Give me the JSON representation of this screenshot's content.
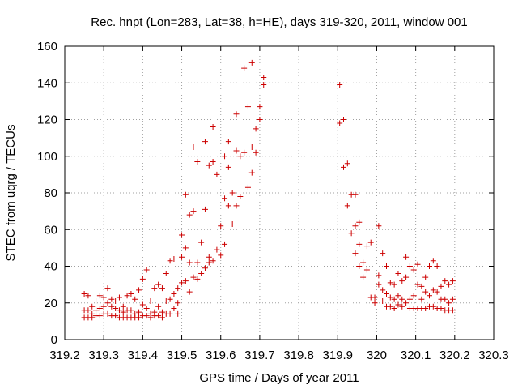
{
  "chart_data": {
    "type": "scatter",
    "title": "Rec. hnpt (Lon=283, Lat=38, h=HE), days 319-320, 2011, window 001",
    "xlabel": "GPS time / Days of year 2011",
    "ylabel": "STEC from uqrg / TECUs",
    "xlim": [
      319.2,
      320.3
    ],
    "ylim": [
      0,
      160
    ],
    "x_ticks": [
      "319.2",
      "319.3",
      "319.4",
      "319.5",
      "319.6",
      "319.7",
      "319.8",
      "319.9",
      "320",
      "320.1",
      "320.2",
      "320.3"
    ],
    "y_ticks": [
      "0",
      "20",
      "40",
      "60",
      "80",
      "100",
      "120",
      "140",
      "160"
    ],
    "grid": true,
    "legend": "none",
    "marker": "+",
    "color": "#cc0000",
    "series": [
      {
        "points": [
          [
            319.25,
            25
          ],
          [
            319.25,
            16
          ],
          [
            319.25,
            12
          ],
          [
            319.26,
            24
          ],
          [
            319.26,
            16
          ],
          [
            319.26,
            12
          ],
          [
            319.27,
            18
          ],
          [
            319.27,
            14
          ],
          [
            319.27,
            12
          ],
          [
            319.28,
            21
          ],
          [
            319.28,
            16
          ],
          [
            319.28,
            13
          ],
          [
            319.29,
            24
          ],
          [
            319.29,
            17
          ],
          [
            319.29,
            13
          ],
          [
            319.3,
            23
          ],
          [
            319.3,
            18
          ],
          [
            319.3,
            14
          ],
          [
            319.31,
            28
          ],
          [
            319.31,
            20
          ],
          [
            319.31,
            14
          ],
          [
            319.32,
            22
          ],
          [
            319.32,
            18
          ],
          [
            319.32,
            13
          ],
          [
            319.33,
            21
          ],
          [
            319.33,
            17
          ],
          [
            319.33,
            13
          ],
          [
            319.34,
            23
          ],
          [
            319.34,
            16
          ],
          [
            319.34,
            12
          ],
          [
            319.35,
            18
          ],
          [
            319.35,
            15
          ],
          [
            319.35,
            12
          ],
          [
            319.36,
            24
          ],
          [
            319.36,
            16
          ],
          [
            319.36,
            12
          ],
          [
            319.37,
            25
          ],
          [
            319.37,
            16
          ],
          [
            319.37,
            12
          ],
          [
            319.38,
            22
          ],
          [
            319.38,
            14
          ],
          [
            319.38,
            12
          ],
          [
            319.39,
            27
          ],
          [
            319.39,
            15
          ],
          [
            319.39,
            12
          ],
          [
            319.4,
            33
          ],
          [
            319.4,
            19
          ],
          [
            319.4,
            13
          ],
          [
            319.41,
            38
          ],
          [
            319.41,
            17
          ],
          [
            319.41,
            13
          ],
          [
            319.42,
            21
          ],
          [
            319.42,
            14
          ],
          [
            319.42,
            12
          ],
          [
            319.43,
            28
          ],
          [
            319.43,
            15
          ],
          [
            319.43,
            13
          ],
          [
            319.44,
            30
          ],
          [
            319.44,
            18
          ],
          [
            319.44,
            13
          ],
          [
            319.45,
            28
          ],
          [
            319.45,
            15
          ],
          [
            319.45,
            12
          ],
          [
            319.46,
            36
          ],
          [
            319.46,
            21
          ],
          [
            319.46,
            14
          ],
          [
            319.47,
            43
          ],
          [
            319.47,
            22
          ],
          [
            319.47,
            14
          ],
          [
            319.48,
            44
          ],
          [
            319.48,
            25
          ],
          [
            319.48,
            17
          ],
          [
            319.49,
            28
          ],
          [
            319.49,
            20
          ],
          [
            319.49,
            14
          ],
          [
            319.5,
            57
          ],
          [
            319.5,
            45
          ],
          [
            319.5,
            31
          ],
          [
            319.51,
            79
          ],
          [
            319.51,
            50
          ],
          [
            319.51,
            32
          ],
          [
            319.52,
            68
          ],
          [
            319.52,
            42
          ],
          [
            319.52,
            26
          ],
          [
            319.53,
            105
          ],
          [
            319.53,
            70
          ],
          [
            319.53,
            34
          ],
          [
            319.54,
            97
          ],
          [
            319.54,
            42
          ],
          [
            319.54,
            33
          ],
          [
            319.55,
            53
          ],
          [
            319.55,
            36
          ],
          [
            319.56,
            108
          ],
          [
            319.56,
            71
          ],
          [
            319.56,
            39
          ],
          [
            319.57,
            95
          ],
          [
            319.57,
            45
          ],
          [
            319.57,
            42
          ],
          [
            319.58,
            116
          ],
          [
            319.58,
            97
          ],
          [
            319.58,
            43
          ],
          [
            319.59,
            90
          ],
          [
            319.59,
            49
          ],
          [
            319.6,
            62
          ],
          [
            319.6,
            46
          ],
          [
            319.61,
            100
          ],
          [
            319.61,
            77
          ],
          [
            319.61,
            52
          ],
          [
            319.62,
            108
          ],
          [
            319.62,
            94
          ],
          [
            319.62,
            73
          ],
          [
            319.63,
            80
          ],
          [
            319.63,
            63
          ],
          [
            319.64,
            123
          ],
          [
            319.64,
            103
          ],
          [
            319.64,
            73
          ],
          [
            319.65,
            100
          ],
          [
            319.65,
            78
          ],
          [
            319.66,
            148
          ],
          [
            319.66,
            102
          ],
          [
            319.67,
            127
          ],
          [
            319.67,
            83
          ],
          [
            319.68,
            151
          ],
          [
            319.68,
            105
          ],
          [
            319.68,
            91
          ],
          [
            319.69,
            115
          ],
          [
            319.69,
            102
          ],
          [
            319.7,
            127
          ],
          [
            319.7,
            120
          ],
          [
            319.71,
            143
          ],
          [
            319.71,
            139
          ],
          [
            319.905,
            139
          ],
          [
            319.905,
            118
          ],
          [
            319.915,
            120
          ],
          [
            319.915,
            94
          ],
          [
            319.925,
            96
          ],
          [
            319.925,
            73
          ],
          [
            319.935,
            79
          ],
          [
            319.935,
            58
          ],
          [
            319.945,
            79
          ],
          [
            319.945,
            62
          ],
          [
            319.945,
            47
          ],
          [
            319.955,
            64
          ],
          [
            319.955,
            52
          ],
          [
            319.955,
            40
          ],
          [
            319.965,
            42
          ],
          [
            319.965,
            34
          ],
          [
            319.975,
            51
          ],
          [
            319.975,
            38
          ],
          [
            319.985,
            53
          ],
          [
            319.985,
            23
          ],
          [
            319.995,
            23
          ],
          [
            319.995,
            20
          ],
          [
            320.005,
            62
          ],
          [
            320.005,
            35
          ],
          [
            320.005,
            30
          ],
          [
            320.015,
            47
          ],
          [
            320.015,
            27
          ],
          [
            320.015,
            21
          ],
          [
            320.025,
            40
          ],
          [
            320.025,
            25
          ],
          [
            320.025,
            18
          ],
          [
            320.035,
            31
          ],
          [
            320.035,
            23
          ],
          [
            320.035,
            18
          ],
          [
            320.045,
            30
          ],
          [
            320.045,
            22
          ],
          [
            320.045,
            17
          ],
          [
            320.055,
            36
          ],
          [
            320.055,
            24
          ],
          [
            320.055,
            19
          ],
          [
            320.065,
            32
          ],
          [
            320.065,
            22
          ],
          [
            320.065,
            18
          ],
          [
            320.075,
            45
          ],
          [
            320.075,
            34
          ],
          [
            320.075,
            20
          ],
          [
            320.085,
            40
          ],
          [
            320.085,
            22
          ],
          [
            320.085,
            17
          ],
          [
            320.095,
            38
          ],
          [
            320.095,
            24
          ],
          [
            320.095,
            17
          ],
          [
            320.105,
            41
          ],
          [
            320.105,
            30
          ],
          [
            320.105,
            17
          ],
          [
            320.115,
            29
          ],
          [
            320.115,
            22
          ],
          [
            320.115,
            17
          ],
          [
            320.125,
            34
          ],
          [
            320.125,
            26
          ],
          [
            320.125,
            17
          ],
          [
            320.135,
            40
          ],
          [
            320.135,
            24
          ],
          [
            320.135,
            18
          ],
          [
            320.145,
            43
          ],
          [
            320.145,
            27
          ],
          [
            320.145,
            18
          ],
          [
            320.155,
            40
          ],
          [
            320.155,
            26
          ],
          [
            320.155,
            17
          ],
          [
            320.165,
            29
          ],
          [
            320.165,
            22
          ],
          [
            320.165,
            17
          ],
          [
            320.175,
            32
          ],
          [
            320.175,
            22
          ],
          [
            320.175,
            16
          ],
          [
            320.185,
            30
          ],
          [
            320.185,
            20
          ],
          [
            320.185,
            16
          ],
          [
            320.195,
            32
          ],
          [
            320.195,
            22
          ],
          [
            320.195,
            16
          ]
        ]
      }
    ]
  }
}
